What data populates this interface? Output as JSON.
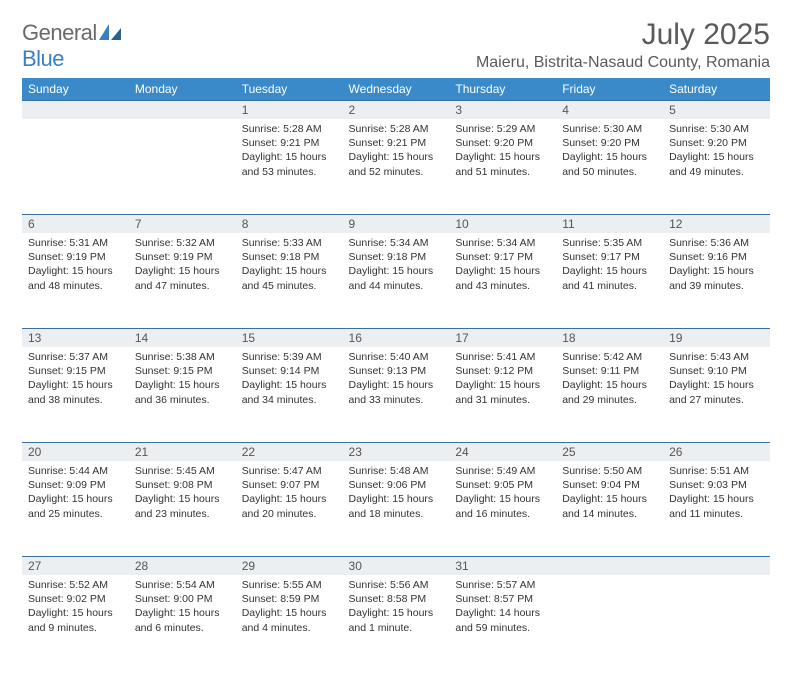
{
  "brand": {
    "part1": "General",
    "part2": "Blue"
  },
  "title": "July 2025",
  "location": "Maieru, Bistrita-Nasaud County, Romania",
  "day_headers": [
    "Sunday",
    "Monday",
    "Tuesday",
    "Wednesday",
    "Thursday",
    "Friday",
    "Saturday"
  ],
  "colors": {
    "header_bg": "#3a89c9",
    "header_text": "#ffffff",
    "daynum_bg": "#eceff1",
    "rule": "#3a6f9e",
    "body_text": "#333333",
    "title_text": "#5a5a5a"
  },
  "typography": {
    "month_title_fontsize": 30,
    "location_fontsize": 16,
    "header_fontsize": 12,
    "daynum_fontsize": 12,
    "cell_fontsize": 10.5
  },
  "weeks": [
    [
      null,
      null,
      {
        "n": "1",
        "sr": "5:28 AM",
        "ss": "9:21 PM",
        "dl": "15 hours and 53 minutes."
      },
      {
        "n": "2",
        "sr": "5:28 AM",
        "ss": "9:21 PM",
        "dl": "15 hours and 52 minutes."
      },
      {
        "n": "3",
        "sr": "5:29 AM",
        "ss": "9:20 PM",
        "dl": "15 hours and 51 minutes."
      },
      {
        "n": "4",
        "sr": "5:30 AM",
        "ss": "9:20 PM",
        "dl": "15 hours and 50 minutes."
      },
      {
        "n": "5",
        "sr": "5:30 AM",
        "ss": "9:20 PM",
        "dl": "15 hours and 49 minutes."
      }
    ],
    [
      {
        "n": "6",
        "sr": "5:31 AM",
        "ss": "9:19 PM",
        "dl": "15 hours and 48 minutes."
      },
      {
        "n": "7",
        "sr": "5:32 AM",
        "ss": "9:19 PM",
        "dl": "15 hours and 47 minutes."
      },
      {
        "n": "8",
        "sr": "5:33 AM",
        "ss": "9:18 PM",
        "dl": "15 hours and 45 minutes."
      },
      {
        "n": "9",
        "sr": "5:34 AM",
        "ss": "9:18 PM",
        "dl": "15 hours and 44 minutes."
      },
      {
        "n": "10",
        "sr": "5:34 AM",
        "ss": "9:17 PM",
        "dl": "15 hours and 43 minutes."
      },
      {
        "n": "11",
        "sr": "5:35 AM",
        "ss": "9:17 PM",
        "dl": "15 hours and 41 minutes."
      },
      {
        "n": "12",
        "sr": "5:36 AM",
        "ss": "9:16 PM",
        "dl": "15 hours and 39 minutes."
      }
    ],
    [
      {
        "n": "13",
        "sr": "5:37 AM",
        "ss": "9:15 PM",
        "dl": "15 hours and 38 minutes."
      },
      {
        "n": "14",
        "sr": "5:38 AM",
        "ss": "9:15 PM",
        "dl": "15 hours and 36 minutes."
      },
      {
        "n": "15",
        "sr": "5:39 AM",
        "ss": "9:14 PM",
        "dl": "15 hours and 34 minutes."
      },
      {
        "n": "16",
        "sr": "5:40 AM",
        "ss": "9:13 PM",
        "dl": "15 hours and 33 minutes."
      },
      {
        "n": "17",
        "sr": "5:41 AM",
        "ss": "9:12 PM",
        "dl": "15 hours and 31 minutes."
      },
      {
        "n": "18",
        "sr": "5:42 AM",
        "ss": "9:11 PM",
        "dl": "15 hours and 29 minutes."
      },
      {
        "n": "19",
        "sr": "5:43 AM",
        "ss": "9:10 PM",
        "dl": "15 hours and 27 minutes."
      }
    ],
    [
      {
        "n": "20",
        "sr": "5:44 AM",
        "ss": "9:09 PM",
        "dl": "15 hours and 25 minutes."
      },
      {
        "n": "21",
        "sr": "5:45 AM",
        "ss": "9:08 PM",
        "dl": "15 hours and 23 minutes."
      },
      {
        "n": "22",
        "sr": "5:47 AM",
        "ss": "9:07 PM",
        "dl": "15 hours and 20 minutes."
      },
      {
        "n": "23",
        "sr": "5:48 AM",
        "ss": "9:06 PM",
        "dl": "15 hours and 18 minutes."
      },
      {
        "n": "24",
        "sr": "5:49 AM",
        "ss": "9:05 PM",
        "dl": "15 hours and 16 minutes."
      },
      {
        "n": "25",
        "sr": "5:50 AM",
        "ss": "9:04 PM",
        "dl": "15 hours and 14 minutes."
      },
      {
        "n": "26",
        "sr": "5:51 AM",
        "ss": "9:03 PM",
        "dl": "15 hours and 11 minutes."
      }
    ],
    [
      {
        "n": "27",
        "sr": "5:52 AM",
        "ss": "9:02 PM",
        "dl": "15 hours and 9 minutes."
      },
      {
        "n": "28",
        "sr": "5:54 AM",
        "ss": "9:00 PM",
        "dl": "15 hours and 6 minutes."
      },
      {
        "n": "29",
        "sr": "5:55 AM",
        "ss": "8:59 PM",
        "dl": "15 hours and 4 minutes."
      },
      {
        "n": "30",
        "sr": "5:56 AM",
        "ss": "8:58 PM",
        "dl": "15 hours and 1 minute."
      },
      {
        "n": "31",
        "sr": "5:57 AM",
        "ss": "8:57 PM",
        "dl": "14 hours and 59 minutes."
      },
      null,
      null
    ]
  ],
  "labels": {
    "sunrise": "Sunrise: ",
    "sunset": "Sunset: ",
    "daylight": "Daylight: "
  }
}
